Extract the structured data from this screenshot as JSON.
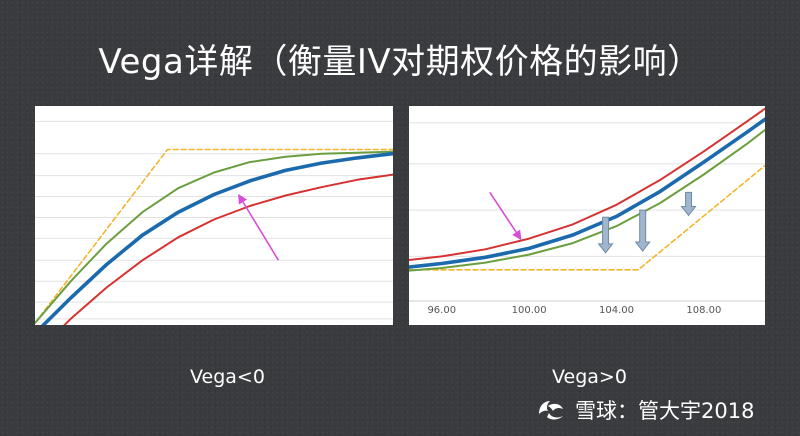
{
  "slide": {
    "title": "Vega详解（衡量IV对期权价格的影响）",
    "caption_left": "Vega<0",
    "caption_right": "Vega>0",
    "watermark": {
      "site": "雪球",
      "separator": "：",
      "author": "管大宇2018",
      "logo_icon": "xueqiu-logo-icon"
    }
  },
  "chart_data": [
    {
      "type": "line",
      "panel": "left",
      "title": "",
      "xlabel": "",
      "ylabel": "",
      "x_ticks": [],
      "xlim": [
        0,
        10
      ],
      "ylim": [
        0,
        10
      ],
      "grid": "horizontal",
      "series": [
        {
          "color": "#f2b52c",
          "dash": true,
          "x": [
            0,
            0,
            3.7,
            10
          ],
          "y": [
            0,
            0,
            8.3,
            8.3
          ]
        },
        {
          "color": "#6b9e3f",
          "x": [
            0,
            1,
            2,
            3,
            4,
            5,
            6,
            7,
            8,
            9,
            10
          ],
          "y": [
            0,
            2.0,
            3.8,
            5.3,
            6.45,
            7.2,
            7.7,
            7.95,
            8.1,
            8.15,
            8.2
          ]
        },
        {
          "color": "#1a6aad",
          "x": [
            0,
            1,
            2,
            3,
            4,
            5,
            6,
            7,
            8,
            9,
            10
          ],
          "y": [
            -0.5,
            1.2,
            2.8,
            4.2,
            5.3,
            6.15,
            6.8,
            7.3,
            7.65,
            7.9,
            8.1
          ]
        },
        {
          "color": "#d63232",
          "x": [
            0,
            1,
            2,
            3,
            4,
            5,
            6,
            7,
            8,
            9,
            10
          ],
          "y": [
            -1.5,
            0.2,
            1.7,
            3.0,
            4.1,
            4.95,
            5.6,
            6.1,
            6.5,
            6.85,
            7.1
          ]
        }
      ],
      "annotations": [
        {
          "type": "arrow",
          "color": "#d64fd6",
          "from": [
            6.8,
            3.0
          ],
          "to": [
            5.7,
            6.1
          ]
        }
      ]
    },
    {
      "type": "line",
      "panel": "right",
      "title": "",
      "xlabel": "",
      "ylabel": "",
      "x_ticks": [
        "96.00",
        "100.00",
        "104.00",
        "108.00"
      ],
      "xlim": [
        94.5,
        110.8
      ],
      "ylim": [
        0,
        10
      ],
      "grid": "horizontal",
      "series": [
        {
          "color": "#f2b52c",
          "dash": true,
          "x": [
            94.5,
            105,
            110.8
          ],
          "y": [
            1.25,
            1.25,
            7.1
          ]
        },
        {
          "color": "#d63232",
          "x": [
            94.5,
            96,
            98,
            100,
            102,
            104,
            106,
            108,
            110,
            110.8
          ],
          "y": [
            1.8,
            2.0,
            2.4,
            3.0,
            3.8,
            4.9,
            6.3,
            7.9,
            9.6,
            10.3
          ]
        },
        {
          "color": "#1a6aad",
          "x": [
            94.5,
            96,
            98,
            100,
            102,
            104,
            106,
            108,
            110,
            110.8
          ],
          "y": [
            1.4,
            1.6,
            1.95,
            2.45,
            3.2,
            4.25,
            5.65,
            7.3,
            9.0,
            9.7
          ]
        },
        {
          "color": "#6b9e3f",
          "x": [
            94.5,
            96,
            98,
            100,
            102,
            104,
            106,
            108,
            110,
            110.8
          ],
          "y": [
            1.2,
            1.35,
            1.65,
            2.1,
            2.75,
            3.7,
            5.0,
            6.6,
            8.35,
            9.1
          ]
        }
      ],
      "annotations": [
        {
          "type": "arrow",
          "color": "#d64fd6",
          "from": [
            98.2,
            5.6
          ],
          "to": [
            99.6,
            3.0
          ]
        },
        {
          "type": "block-arrow",
          "color": "#9fb6cc",
          "x": 103.5,
          "from_y": 4.2,
          "to_y": 2.2
        },
        {
          "type": "block-arrow",
          "color": "#9fb6cc",
          "x": 105.2,
          "from_y": 4.6,
          "to_y": 2.3
        },
        {
          "type": "block-arrow",
          "color": "#9fb6cc",
          "x": 107.3,
          "from_y": 5.6,
          "to_y": 4.3
        }
      ]
    }
  ]
}
